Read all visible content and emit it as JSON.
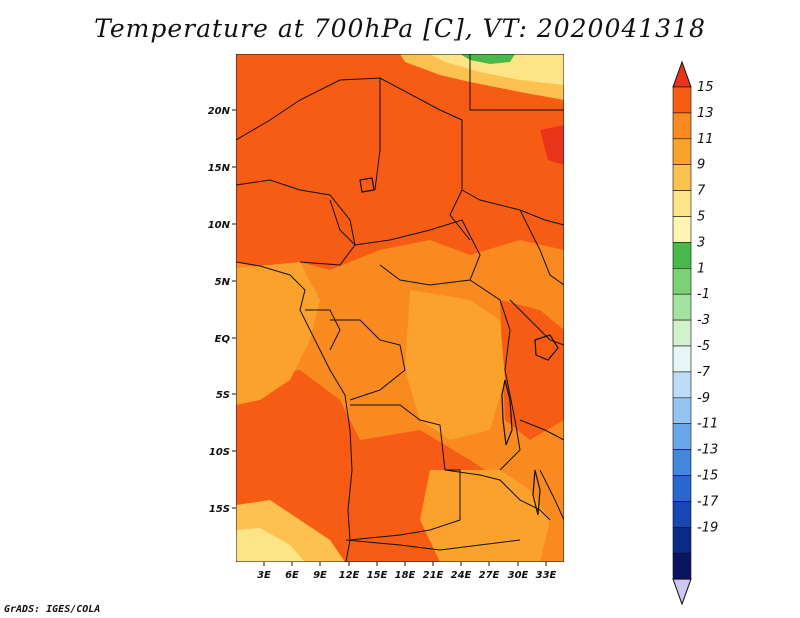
{
  "title": "Temperature at 700hPa [C], VT: 2020041318",
  "credit": "GrADS: IGES/COLA",
  "map": {
    "lat_labels": [
      "20N",
      "15N",
      "10N",
      "5N",
      "EQ",
      "5S",
      "10S",
      "15S"
    ],
    "lon_labels": [
      "3E",
      "6E",
      "9E",
      "12E",
      "15E",
      "18E",
      "21E",
      "24E",
      "27E",
      "30E",
      "33E"
    ]
  },
  "colorbar": {
    "labels": [
      "15",
      "13",
      "11",
      "9",
      "7",
      "5",
      "3",
      "1",
      "-1",
      "-3",
      "-5",
      "-7",
      "-9",
      "-11",
      "-13",
      "-15",
      "-17",
      "-19"
    ],
    "colors": [
      "#e8341a",
      "#f65c14",
      "#f98a1f",
      "#faa22b",
      "#fdc150",
      "#fde587",
      "#fdf6b3",
      "#49b949",
      "#7ad272",
      "#a4e39f",
      "#d2f2cd",
      "#e6f5f5",
      "#bcdcf7",
      "#93c4f0",
      "#6aa7ea",
      "#4286e0",
      "#2a66cf",
      "#1747b5",
      "#0a2a8a",
      "#0a1460",
      "#cdc8f0"
    ]
  },
  "colors": {
    "warm_dark": "#f65c14",
    "warm_mid": "#f98a1f",
    "warm_light": "#faa22b",
    "pale": "#fdc150",
    "yellow": "#fde587",
    "green": "#49b949"
  }
}
